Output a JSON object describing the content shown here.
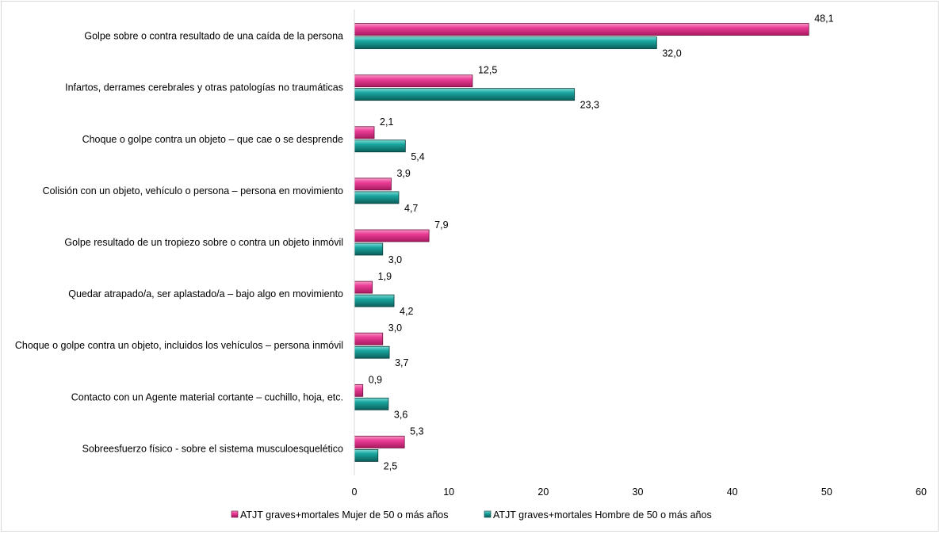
{
  "chart_data": {
    "type": "bar",
    "orientation": "horizontal",
    "categories": [
      "Golpe sobre o contra resultado de una caída de la persona",
      "Infartos, derrames cerebrales y otras patologías no traumáticas",
      "Choque o golpe contra un objeto – que cae o se desprende",
      "Colisión con un objeto, vehículo o persona – persona en movimiento",
      "Golpe resultado de un tropiezo sobre o contra un objeto inmóvil",
      "Quedar atrapado/a, ser aplastado/a – bajo algo en movimiento",
      "Choque o golpe contra un objeto, incluidos los vehículos – persona inmóvil",
      "Contacto con un Agente material cortante –  cuchillo, hoja, etc.",
      "Sobreesfuerzo físico - sobre el sistema musculoesquelético"
    ],
    "series": [
      {
        "name": "ATJT graves+mortales Mujer de 50 o más años",
        "color": "#e8368f",
        "values": [
          48.1,
          12.5,
          2.1,
          3.9,
          7.9,
          1.9,
          3.0,
          0.9,
          5.3
        ],
        "labels": [
          "48,1",
          "12,5",
          "2,1",
          "3,9",
          "7,9",
          "1,9",
          "3,0",
          "0,9",
          "5,3"
        ]
      },
      {
        "name": "ATJT graves+mortales  Hombre de 50 o más años",
        "color": "#1aa6a0",
        "values": [
          32.0,
          23.3,
          5.4,
          4.7,
          3.0,
          4.2,
          3.7,
          3.6,
          2.5
        ],
        "labels": [
          "32,0",
          "23,3",
          "5,4",
          "4,7",
          "3,0",
          "4,2",
          "3,7",
          "3,6",
          "2,5"
        ]
      }
    ],
    "xlim": [
      0,
      60
    ],
    "xticks": [
      "0",
      "10",
      "20",
      "30",
      "40",
      "50",
      "60"
    ],
    "grid": false,
    "legend": "bottom"
  }
}
